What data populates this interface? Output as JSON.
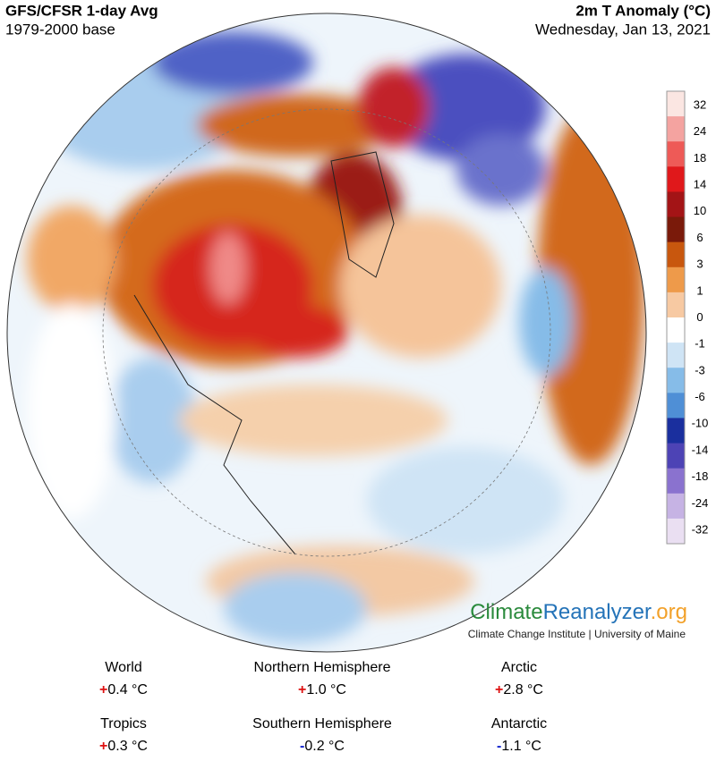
{
  "header": {
    "title": "GFS/CFSR 1-day Avg",
    "subtitle": "1979-2000 base",
    "variable": "2m T Anomaly (°C)",
    "date": "Wednesday, Jan 13, 2021"
  },
  "legend": {
    "ticks": [
      32,
      24,
      18,
      14,
      10,
      6,
      3,
      1,
      0,
      -1,
      -3,
      -6,
      -10,
      -14,
      -18,
      -24,
      -32
    ],
    "colors": [
      "#fbe6e2",
      "#f4a3a0",
      "#ee5a57",
      "#e0181b",
      "#a31416",
      "#7a1a0a",
      "#c8570e",
      "#ee9a4a",
      "#f7c9a2",
      "#ffffff",
      "#cfe4f5",
      "#86bce8",
      "#4f8fd6",
      "#1a2f9e",
      "#4d43b5",
      "#8a72cf",
      "#c6b3e4",
      "#eadff2"
    ]
  },
  "branding": {
    "parts": [
      {
        "text": "Climate",
        "color": "#2a8a3c"
      },
      {
        "text": "Reanalyzer",
        "color": "#2473b8"
      },
      {
        "text": ".org",
        "color": "#f2a12a"
      }
    ],
    "credit": "Climate Change Institute | University of Maine"
  },
  "stats": [
    {
      "region": "World",
      "sign": "+",
      "value": "0.4 °C"
    },
    {
      "region": "Northern Hemisphere",
      "sign": "+",
      "value": "1.0 °C"
    },
    {
      "region": "Arctic",
      "sign": "+",
      "value": "2.8 °C"
    },
    {
      "region": "Tropics",
      "sign": "+",
      "value": "0.3 °C"
    },
    {
      "region": "Southern Hemisphere",
      "sign": "-",
      "value": "0.2 °C"
    },
    {
      "region": "Antarctic",
      "sign": "-",
      "value": "1.1 °C"
    }
  ]
}
